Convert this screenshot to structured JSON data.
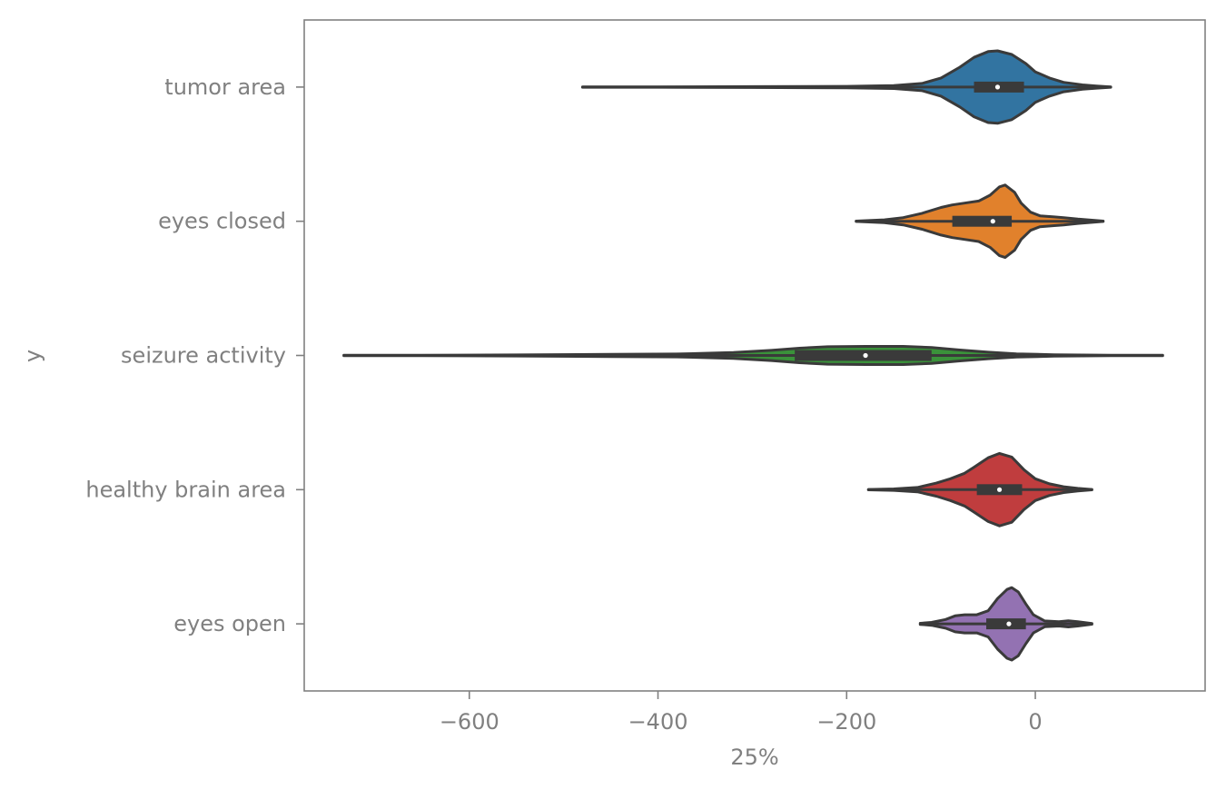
{
  "chart_data": {
    "type": "violin",
    "orientation": "horizontal",
    "xlabel": "25%",
    "ylabel": "y",
    "xlim": [
      -775,
      180
    ],
    "xticks": [
      -600,
      -400,
      -200,
      0
    ],
    "xtick_labels": [
      "−600",
      "−400",
      "−200",
      "0"
    ],
    "grid": false,
    "series": [
      {
        "name": "tumor area",
        "color": "#3274a1",
        "min": -480,
        "q1": -65,
        "median": -40,
        "q3": -12,
        "max": 80,
        "density": [
          [
            -480,
            0.004
          ],
          [
            -400,
            0.005
          ],
          [
            -300,
            0.012
          ],
          [
            -200,
            0.02
          ],
          [
            -150,
            0.04
          ],
          [
            -120,
            0.1
          ],
          [
            -100,
            0.25
          ],
          [
            -80,
            0.55
          ],
          [
            -65,
            0.82
          ],
          [
            -50,
            0.98
          ],
          [
            -40,
            1.0
          ],
          [
            -25,
            0.9
          ],
          [
            -10,
            0.65
          ],
          [
            0,
            0.42
          ],
          [
            15,
            0.25
          ],
          [
            30,
            0.13
          ],
          [
            50,
            0.06
          ],
          [
            65,
            0.03
          ],
          [
            80,
            0.004
          ]
        ]
      },
      {
        "name": "eyes closed",
        "color": "#e1812c",
        "min": -190,
        "q1": -88,
        "median": -45,
        "q3": -25,
        "max": 72,
        "density": [
          [
            -190,
            0.005
          ],
          [
            -160,
            0.04
          ],
          [
            -140,
            0.1
          ],
          [
            -120,
            0.22
          ],
          [
            -100,
            0.38
          ],
          [
            -88,
            0.45
          ],
          [
            -75,
            0.5
          ],
          [
            -60,
            0.56
          ],
          [
            -48,
            0.72
          ],
          [
            -38,
            0.95
          ],
          [
            -32,
            1.0
          ],
          [
            -22,
            0.8
          ],
          [
            -15,
            0.5
          ],
          [
            -5,
            0.25
          ],
          [
            5,
            0.15
          ],
          [
            20,
            0.12
          ],
          [
            30,
            0.1
          ],
          [
            45,
            0.06
          ],
          [
            60,
            0.03
          ],
          [
            72,
            0.005
          ]
        ]
      },
      {
        "name": "seizure activity",
        "color": "#3a923a",
        "min": -733,
        "q1": -255,
        "median": -180,
        "q3": -110,
        "max": 135,
        "density": [
          [
            -733,
            0.004
          ],
          [
            -650,
            0.008
          ],
          [
            -550,
            0.016
          ],
          [
            -450,
            0.03
          ],
          [
            -380,
            0.04
          ],
          [
            -320,
            0.08
          ],
          [
            -280,
            0.14
          ],
          [
            -250,
            0.2
          ],
          [
            -220,
            0.24
          ],
          [
            -180,
            0.25
          ],
          [
            -140,
            0.25
          ],
          [
            -110,
            0.22
          ],
          [
            -80,
            0.15
          ],
          [
            -50,
            0.09
          ],
          [
            -20,
            0.045
          ],
          [
            20,
            0.02
          ],
          [
            80,
            0.008
          ],
          [
            135,
            0.004
          ]
        ]
      },
      {
        "name": "healthy brain area",
        "color": "#c03d3e",
        "min": -177,
        "q1": -62,
        "median": -38,
        "q3": -14,
        "max": 60,
        "density": [
          [
            -177,
            0.005
          ],
          [
            -150,
            0.02
          ],
          [
            -125,
            0.06
          ],
          [
            -105,
            0.18
          ],
          [
            -90,
            0.3
          ],
          [
            -75,
            0.45
          ],
          [
            -65,
            0.62
          ],
          [
            -50,
            0.88
          ],
          [
            -38,
            1.0
          ],
          [
            -25,
            0.9
          ],
          [
            -12,
            0.55
          ],
          [
            0,
            0.3
          ],
          [
            15,
            0.16
          ],
          [
            30,
            0.08
          ],
          [
            45,
            0.035
          ],
          [
            60,
            0.005
          ]
        ]
      },
      {
        "name": "eyes open",
        "color": "#9372b2",
        "min": -122,
        "q1": -52,
        "median": -28,
        "q3": -10,
        "max": 60,
        "density": [
          [
            -122,
            0.015
          ],
          [
            -110,
            0.04
          ],
          [
            -95,
            0.12
          ],
          [
            -85,
            0.22
          ],
          [
            -75,
            0.25
          ],
          [
            -62,
            0.25
          ],
          [
            -50,
            0.36
          ],
          [
            -40,
            0.7
          ],
          [
            -30,
            0.95
          ],
          [
            -25,
            1.0
          ],
          [
            -18,
            0.88
          ],
          [
            -10,
            0.55
          ],
          [
            -2,
            0.25
          ],
          [
            10,
            0.08
          ],
          [
            25,
            0.06
          ],
          [
            35,
            0.085
          ],
          [
            45,
            0.06
          ],
          [
            60,
            0.01
          ]
        ]
      }
    ]
  }
}
